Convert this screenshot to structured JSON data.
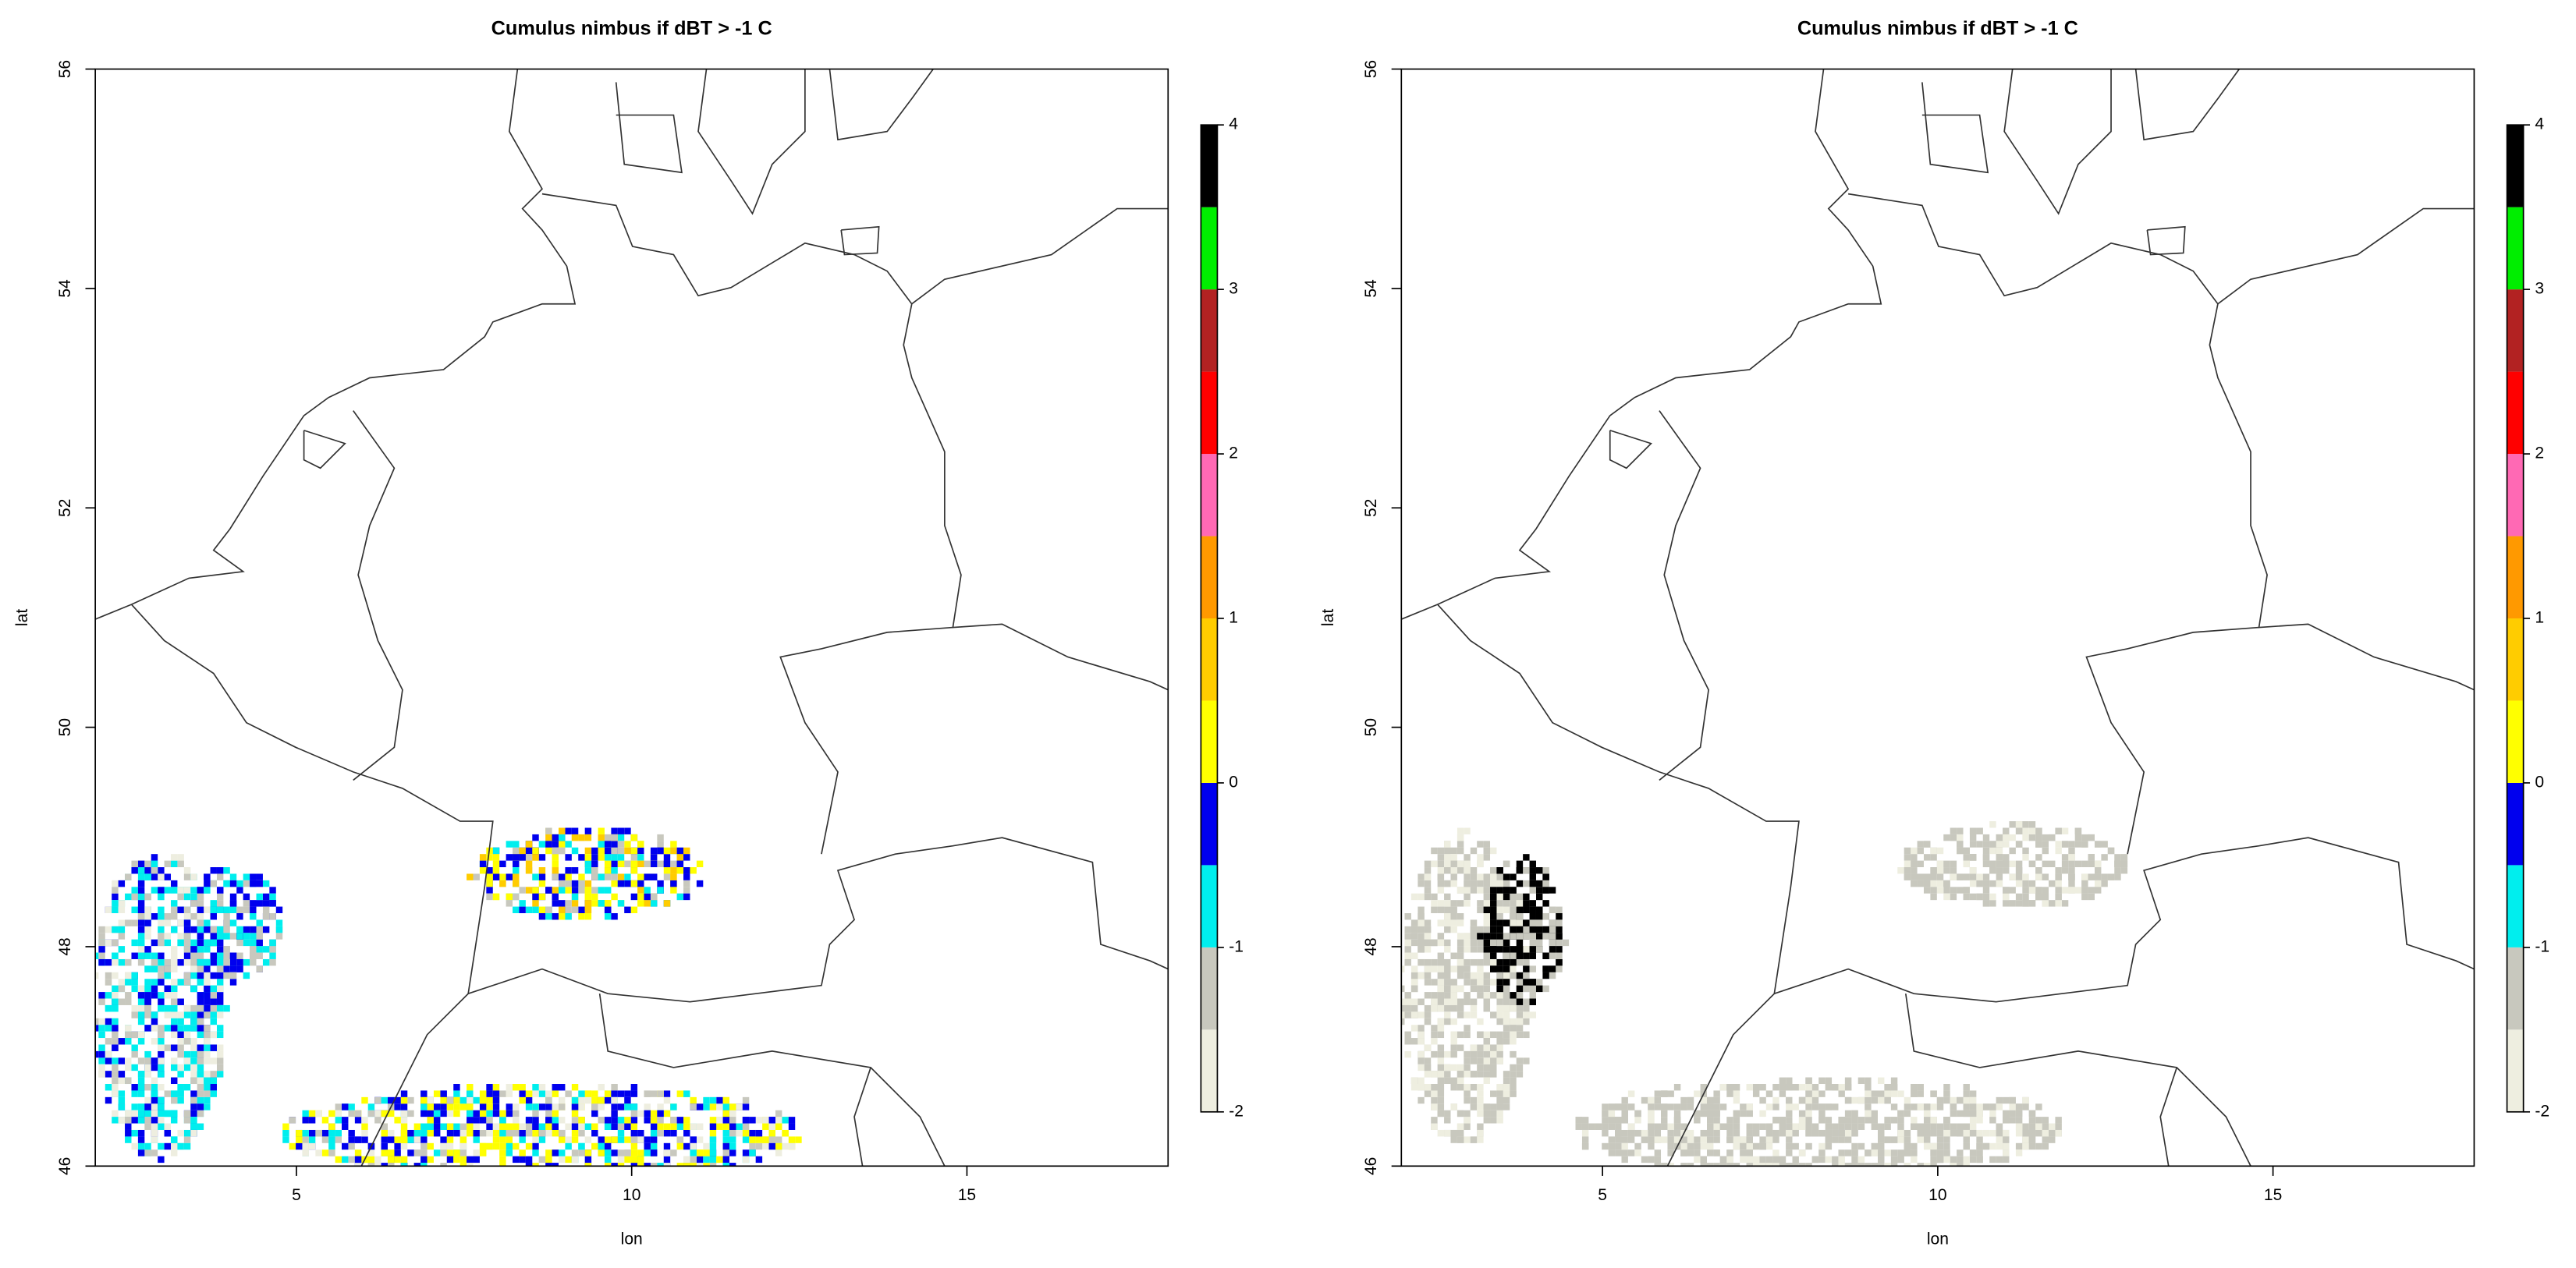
{
  "chart_data": [
    {
      "type": "raster-map",
      "title": "Cumulus nimbus if dBT > -1 C",
      "xlabel": "lon",
      "ylabel": "lat",
      "xlim": [
        2,
        18
      ],
      "ylim": [
        46,
        56
      ],
      "xticks": [
        5,
        10,
        15
      ],
      "yticks": [
        46,
        48,
        50,
        52,
        54,
        56
      ],
      "colorbar": {
        "breaks": [
          -2,
          -1.5,
          -1,
          -0.5,
          0,
          0.5,
          1,
          1.5,
          2,
          2.5,
          3,
          3.5,
          4
        ],
        "colors": [
          "#eeeee0",
          "#c8c8be",
          "#00eeee",
          "#0000ee",
          "#ffff00",
          "#ffcc00",
          "#ff9900",
          "#ff69b4",
          "#ff0000",
          "#b22222",
          "#00ee00",
          "#000000"
        ],
        "ticks": [
          -2,
          -1,
          0,
          1,
          2,
          3,
          4
        ]
      }
    },
    {
      "type": "raster-map",
      "title": "Cumulus nimbus if dBT > -1 C",
      "xlabel": "lon",
      "ylabel": "lat",
      "xlim": [
        2,
        18
      ],
      "ylim": [
        46,
        56
      ],
      "xticks": [
        5,
        10,
        15
      ],
      "yticks": [
        46,
        48,
        50,
        52,
        54,
        56
      ],
      "colorbar": {
        "breaks": [
          -2,
          -1.5,
          -1,
          -0.5,
          0,
          0.5,
          1,
          1.5,
          2,
          2.5,
          3,
          3.5,
          4
        ],
        "colors": [
          "#eeeee0",
          "#c8c8be",
          "#00eeee",
          "#0000ee",
          "#ffff00",
          "#ffcc00",
          "#ff9900",
          "#ff69b4",
          "#ff0000",
          "#b22222",
          "#00ee00",
          "#000000"
        ],
        "ticks": [
          -2,
          -1,
          0,
          1,
          2,
          3,
          4
        ]
      }
    }
  ]
}
